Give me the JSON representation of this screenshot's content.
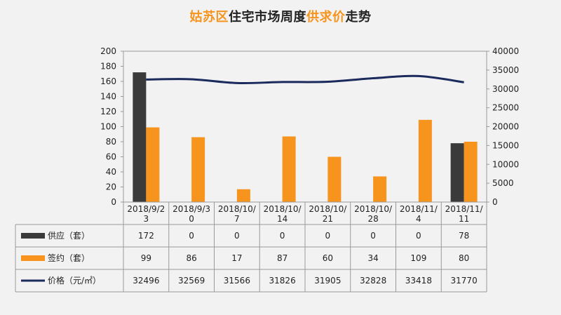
{
  "title": {
    "part1": "姑苏区",
    "part2": "住宅市场周度",
    "part3": "供求价",
    "part4": "走势"
  },
  "colors": {
    "supply": "#3a3a3a",
    "signed": "#f7941d",
    "price": "#1b2a5c",
    "title_accent": "#f7941d"
  },
  "chart_data": {
    "type": "bar",
    "categories": [
      [
        "2018/9/2",
        "3"
      ],
      [
        "2018/9/3",
        "0"
      ],
      [
        "2018/10/",
        "7"
      ],
      [
        "2018/10/",
        "14"
      ],
      [
        "2018/10/",
        "21"
      ],
      [
        "2018/10/",
        "28"
      ],
      [
        "2018/11/",
        "4"
      ],
      [
        "2018/11/",
        "11"
      ]
    ],
    "series": [
      {
        "name": "供应（套）",
        "type": "bar",
        "axis": "left",
        "values": [
          172,
          0,
          0,
          0,
          0,
          0,
          0,
          78
        ]
      },
      {
        "name": "签约（套）",
        "type": "bar",
        "axis": "left",
        "values": [
          99,
          86,
          17,
          87,
          60,
          34,
          109,
          80
        ]
      },
      {
        "name": "价格（元/㎡）",
        "type": "line",
        "axis": "right",
        "values": [
          32496,
          32569,
          31566,
          31826,
          31905,
          32828,
          33418,
          31770
        ]
      }
    ],
    "ylim_left": [
      0,
      200
    ],
    "yticks_left": [
      "0",
      "20",
      "40",
      "60",
      "80",
      "100",
      "120",
      "140",
      "160",
      "180",
      "200"
    ],
    "ylim_right": [
      0,
      40000
    ],
    "yticks_right": [
      "0",
      "5000",
      "10000",
      "15000",
      "20000",
      "25000",
      "30000",
      "35000",
      "40000"
    ],
    "grid": false,
    "legend": "data-table"
  }
}
